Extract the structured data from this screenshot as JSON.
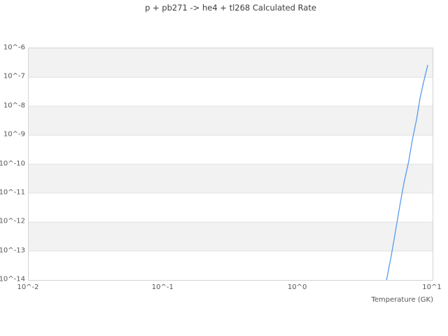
{
  "chart_data": {
    "type": "line",
    "title": "p + pb271 -> he4 + tl268 Calculated Rate",
    "xlabel": "Temperature (GK)",
    "ylabel": "",
    "x_scale": "log",
    "y_scale": "log",
    "xlim_log": [
      -2,
      1
    ],
    "ylim_log": [
      -14,
      -6
    ],
    "grid": "horizontal-gridlines-with-alternating-bands",
    "legend": "none",
    "xticks": [
      {
        "label": "10^-2",
        "log": -2
      },
      {
        "label": "10^-1",
        "log": -1
      },
      {
        "label": "10^0",
        "log": 0
      },
      {
        "label": "10^1",
        "log": 1
      }
    ],
    "yticks": [
      {
        "label": "10^-6",
        "log": -6
      },
      {
        "label": "10^-7",
        "log": -7
      },
      {
        "label": "10^-8",
        "log": -8
      },
      {
        "label": "10^-9",
        "log": -9
      },
      {
        "label": "10^-10",
        "log": -10
      },
      {
        "label": "10^-11",
        "log": -11
      },
      {
        "label": "10^-12",
        "log": -12
      },
      {
        "label": "10^-13",
        "log": -13
      },
      {
        "label": "10^-14",
        "log": -14
      }
    ],
    "shaded_band_top_exponents": [
      -6,
      -8,
      -10,
      -12
    ],
    "gridline_exponents": [
      -7,
      -8,
      -9,
      -10,
      -11,
      -12,
      -13
    ],
    "series": [
      {
        "name": "calculated-rate",
        "color": "#569cee",
        "points": [
          {
            "T": 4.55,
            "rate": 1e-14
          },
          {
            "T": 4.94,
            "rate": 7.2e-14
          },
          {
            "T": 5.31,
            "rate": 5e-13
          },
          {
            "T": 5.7,
            "rate": 3.5e-12
          },
          {
            "T": 6.12,
            "rate": 2.2e-11
          },
          {
            "T": 6.66,
            "rate": 1.3e-10
          },
          {
            "T": 7.07,
            "rate": 6.8e-10
          },
          {
            "T": 7.6,
            "rate": 3.5e-09
          },
          {
            "T": 8.07,
            "rate": 1.9e-08
          },
          {
            "T": 8.56,
            "rate": 6.6e-08
          },
          {
            "T": 9.2,
            "rate": 2.6e-07
          }
        ]
      }
    ]
  },
  "colors": {
    "band_fill": "#f2f2f2",
    "gridline": "#e1e1e1",
    "frame": "#d4d4d4",
    "title_text": "#3d3d3d",
    "tick_text": "#555555",
    "line": "#569cee"
  }
}
